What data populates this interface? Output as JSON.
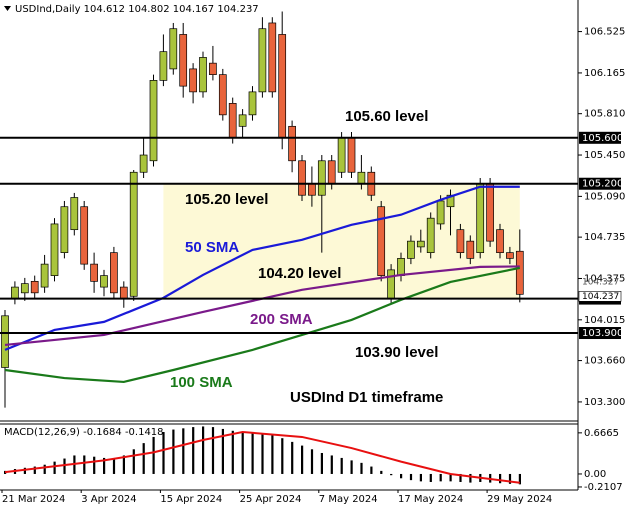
{
  "chart_data": {
    "type": "candlestick",
    "title": "USDInd,Daily",
    "categories": [
      "21 Mar 2024",
      null,
      null,
      null,
      null,
      null,
      null,
      null,
      "3 Apr 2024",
      null,
      null,
      null,
      null,
      null,
      null,
      null,
      "15 Apr 2024",
      null,
      null,
      null,
      null,
      null,
      null,
      null,
      "25 Apr 2024",
      null,
      null,
      null,
      null,
      null,
      null,
      null,
      "7 May 2024",
      null,
      null,
      null,
      null,
      null,
      null,
      null,
      "17 May 2024",
      null,
      null,
      null,
      null,
      null,
      null,
      null,
      null,
      "29 May 2024",
      null,
      null,
      null
    ],
    "open": [
      103.6,
      104.2,
      104.25,
      104.35,
      104.3,
      104.4,
      104.6,
      104.8,
      105.0,
      104.5,
      104.3,
      104.6,
      104.3,
      104.22,
      105.3,
      105.4,
      106.1,
      106.2,
      106.5,
      106.2,
      106.0,
      106.25,
      106.15,
      105.9,
      105.7,
      105.8,
      106.0,
      106.6,
      106.5,
      105.7,
      105.4,
      105.2,
      105.1,
      105.4,
      105.3,
      105.6,
      105.2,
      105.3,
      105.0,
      104.2,
      104.4,
      104.55,
      104.65,
      104.6,
      104.85,
      105.0,
      104.8,
      104.7,
      104.6,
      105.2,
      104.8,
      104.6,
      104.612
    ],
    "high": [
      104.1,
      104.35,
      104.38,
      104.4,
      104.58,
      104.9,
      105.05,
      105.12,
      105.05,
      104.6,
      104.45,
      104.65,
      104.35,
      105.32,
      105.6,
      106.15,
      106.5,
      106.6,
      106.6,
      106.25,
      106.35,
      106.4,
      106.2,
      105.95,
      105.85,
      106.05,
      106.65,
      106.65,
      106.7,
      105.75,
      105.45,
      105.35,
      105.45,
      105.45,
      105.65,
      105.65,
      105.45,
      105.35,
      105.05,
      104.5,
      104.6,
      104.75,
      104.8,
      104.95,
      105.1,
      105.15,
      104.85,
      104.75,
      105.25,
      105.25,
      104.85,
      104.65,
      104.802
    ],
    "low": [
      103.25,
      104.15,
      104.18,
      104.2,
      104.25,
      104.35,
      104.55,
      104.75,
      104.45,
      104.25,
      104.22,
      104.2,
      104.12,
      104.18,
      105.25,
      105.35,
      106.05,
      106.15,
      105.95,
      105.9,
      105.95,
      106.1,
      105.75,
      105.55,
      105.6,
      105.75,
      105.95,
      105.95,
      105.5,
      105.3,
      105.05,
      105.0,
      104.6,
      105.15,
      105.25,
      105.25,
      105.15,
      105.05,
      104.35,
      104.15,
      104.35,
      104.5,
      104.6,
      104.55,
      104.8,
      104.75,
      104.55,
      104.5,
      104.55,
      104.65,
      104.55,
      104.5,
      104.167
    ],
    "close": [
      104.05,
      104.3,
      104.33,
      104.25,
      104.5,
      104.85,
      105.0,
      105.08,
      104.5,
      104.35,
      104.4,
      104.25,
      104.2,
      105.3,
      105.45,
      106.1,
      106.35,
      106.55,
      106.05,
      106.0,
      106.3,
      106.15,
      105.8,
      105.6,
      105.8,
      106.0,
      106.55,
      106.0,
      105.6,
      105.4,
      105.1,
      105.1,
      105.4,
      105.2,
      105.6,
      105.3,
      105.3,
      105.1,
      104.4,
      104.45,
      104.55,
      104.7,
      104.7,
      104.9,
      105.05,
      105.1,
      104.6,
      104.55,
      105.2,
      104.7,
      104.6,
      104.55,
      104.237
    ],
    "up_color": "#a9c43c",
    "down_color": "#e8643c",
    "ylim": [
      103.16,
      106.8
    ],
    "yticks": [
      {
        "value": 106.525,
        "label": "106.525"
      },
      {
        "value": 106.165,
        "label": "106.165"
      },
      {
        "value": 105.81,
        "label": "105.810"
      },
      {
        "value": 105.45,
        "label": "105.450"
      },
      {
        "value": 105.09,
        "label": "105.090"
      },
      {
        "value": 104.735,
        "label": "104.735"
      },
      {
        "value": 104.375,
        "label": "104.375"
      },
      {
        "value": 104.015,
        "label": "104.015"
      },
      {
        "value": 103.66,
        "label": "103.660"
      },
      {
        "value": 103.3,
        "label": "103.300"
      }
    ],
    "moving_averages": [
      {
        "name": "50 SMA",
        "color": "#1a1ad8",
        "x": [
          0,
          5,
          10,
          13,
          16,
          20,
          25,
          30,
          35,
          40,
          44,
          48,
          52
        ],
        "values": [
          103.753,
          103.927,
          103.997,
          104.101,
          104.206,
          104.406,
          104.624,
          104.712,
          104.842,
          104.93,
          105.06,
          105.174,
          105.174
        ]
      },
      {
        "name": "200 SMA",
        "color": "#7a1a8a",
        "x": [
          0,
          10,
          20,
          30,
          40,
          48,
          52
        ],
        "values": [
          103.796,
          103.883,
          104.084,
          104.276,
          104.406,
          104.476,
          104.48
        ]
      },
      {
        "name": "100 SMA",
        "color": "#1a7a1a",
        "x": [
          0,
          6,
          12,
          17,
          25,
          30,
          35,
          40,
          45,
          52
        ],
        "values": [
          103.578,
          103.508,
          103.474,
          103.578,
          103.753,
          103.883,
          104.014,
          104.189,
          104.345,
          104.467
        ]
      }
    ],
    "levels": [
      {
        "value": 105.6,
        "label": "105.600",
        "text": "105.60 level"
      },
      {
        "value": 105.2,
        "label": "105.200",
        "text": "105.20 level"
      },
      {
        "value": 104.2,
        "label": "104.200",
        "text": "104.20 level"
      },
      {
        "value": 103.9,
        "label": "103.900",
        "text": "103.90 level"
      }
    ],
    "zone_color": "#fdf9d6",
    "price_markers": [
      {
        "value": 104.327,
        "label": "104.327"
      },
      {
        "value": 104.237,
        "label": "104.237"
      }
    ],
    "annotation": "USDInd D1 timeframe",
    "macd": {
      "title": "MACD(12,26,9)",
      "histogram": [
        0.05,
        0.08,
        0.1,
        0.12,
        0.15,
        0.2,
        0.25,
        0.3,
        0.3,
        0.28,
        0.26,
        0.24,
        0.3,
        0.4,
        0.5,
        0.6,
        0.68,
        0.72,
        0.74,
        0.76,
        0.77,
        0.76,
        0.73,
        0.7,
        0.68,
        0.67,
        0.66,
        0.63,
        0.58,
        0.52,
        0.46,
        0.4,
        0.34,
        0.3,
        0.26,
        0.22,
        0.18,
        0.12,
        0.05,
        -0.02,
        -0.07,
        -0.1,
        -0.12,
        -0.13,
        -0.12,
        -0.12,
        -0.13,
        -0.14,
        -0.13,
        -0.14,
        -0.15,
        -0.16,
        -0.1684
      ],
      "signal_x": [
        0,
        10,
        15,
        20,
        24,
        30,
        35,
        40,
        45,
        52
      ],
      "signal": [
        0.03,
        0.22,
        0.35,
        0.55,
        0.68,
        0.6,
        0.42,
        0.2,
        0.0,
        -0.1418
      ],
      "signal_color": "#e81010",
      "bar_color": "#000000",
      "ylim": [
        -0.26,
        0.81
      ],
      "yticks": [
        {
          "value": 0.6665,
          "label": "0.6665"
        },
        {
          "value": 0,
          "label": "0.00"
        },
        {
          "value": -0.2107,
          "label": "-0.2107"
        }
      ]
    }
  }
}
